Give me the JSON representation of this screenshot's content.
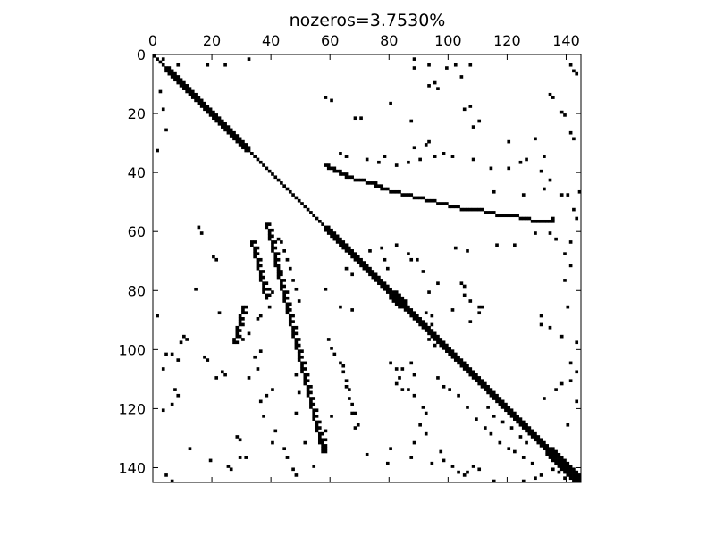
{
  "chart_data": {
    "type": "heatmap",
    "title": "nozeros=3.7530%",
    "xlabel": "",
    "ylabel": "",
    "matrix_size": 145,
    "xlim": [
      0,
      145
    ],
    "ylim": [
      145,
      0
    ],
    "x_axis_position": "top",
    "x_ticks": [
      0,
      20,
      40,
      60,
      80,
      100,
      120,
      140
    ],
    "y_ticks": [
      0,
      20,
      40,
      60,
      80,
      100,
      120,
      140
    ],
    "grid": false,
    "colors": {
      "nonzero": "#000000",
      "zero": "#ffffff",
      "frame": "#000000"
    },
    "diagonal": {
      "from": 0,
      "to": 145,
      "blocks": [
        {
          "start": 4,
          "end": 32,
          "width": 2
        },
        {
          "start": 58,
          "end": 145,
          "width": 2
        },
        {
          "start": 80,
          "end": 84,
          "width": 3
        },
        {
          "start": 133,
          "end": 145,
          "width": 3
        }
      ]
    },
    "bands": [
      {
        "name": "upper-off-band",
        "points": [
          [
            58,
            37
          ],
          [
            62,
            39
          ],
          [
            66,
            41
          ],
          [
            70,
            42
          ],
          [
            74,
            43
          ],
          [
            78,
            45
          ],
          [
            82,
            46
          ],
          [
            86,
            47
          ],
          [
            90,
            48
          ],
          [
            94,
            49
          ],
          [
            98,
            50
          ],
          [
            102,
            51
          ],
          [
            106,
            52
          ],
          [
            110,
            52
          ],
          [
            114,
            53
          ],
          [
            118,
            54
          ],
          [
            122,
            54
          ],
          [
            126,
            55
          ],
          [
            130,
            56
          ],
          [
            134,
            56
          ]
        ]
      },
      {
        "name": "lower-band-a",
        "points": [
          [
            38,
            57
          ],
          [
            39,
            61
          ],
          [
            40,
            65
          ],
          [
            41,
            69
          ],
          [
            42,
            74
          ],
          [
            43,
            78
          ],
          [
            44,
            82
          ],
          [
            45,
            86
          ],
          [
            46,
            90
          ],
          [
            47,
            94
          ],
          [
            48,
            98
          ],
          [
            49,
            102
          ],
          [
            50,
            106
          ],
          [
            51,
            110
          ],
          [
            52,
            114
          ],
          [
            53,
            118
          ],
          [
            54,
            122
          ],
          [
            55,
            126
          ],
          [
            56,
            130
          ],
          [
            57,
            134
          ]
        ]
      },
      {
        "name": "lower-band-b",
        "points": [
          [
            33,
            63
          ],
          [
            34,
            67
          ],
          [
            35,
            71
          ],
          [
            36,
            75
          ],
          [
            37,
            79
          ],
          [
            38,
            82
          ]
        ]
      },
      {
        "name": "lower-band-c",
        "points": [
          [
            30,
            85
          ],
          [
            29,
            89
          ],
          [
            28,
            93
          ],
          [
            27,
            97
          ]
        ]
      }
    ],
    "scatter_points": [
      [
        2,
        2
      ],
      [
        3,
        1
      ],
      [
        4,
        5
      ],
      [
        8,
        3
      ],
      [
        18,
        3
      ],
      [
        24,
        3
      ],
      [
        32,
        1
      ],
      [
        88,
        1
      ],
      [
        88,
        4
      ],
      [
        93,
        3
      ],
      [
        99,
        4
      ],
      [
        102,
        3
      ],
      [
        107,
        3
      ],
      [
        141,
        3
      ],
      [
        142,
        5
      ],
      [
        143,
        6
      ],
      [
        2,
        12
      ],
      [
        3,
        18
      ],
      [
        4,
        25
      ],
      [
        1,
        32
      ],
      [
        95,
        9
      ],
      [
        96,
        11
      ],
      [
        93,
        10
      ],
      [
        104,
        7
      ],
      [
        107,
        17
      ],
      [
        105,
        18
      ],
      [
        110,
        22
      ],
      [
        108,
        24
      ],
      [
        134,
        13
      ],
      [
        135,
        14
      ],
      [
        138,
        19
      ],
      [
        139,
        20
      ],
      [
        141,
        26
      ],
      [
        142,
        28
      ],
      [
        58,
        14
      ],
      [
        60,
        15
      ],
      [
        68,
        21
      ],
      [
        70,
        21
      ],
      [
        80,
        16
      ],
      [
        87,
        22
      ],
      [
        88,
        31
      ],
      [
        92,
        30
      ],
      [
        93,
        29
      ],
      [
        95,
        34
      ],
      [
        120,
        29
      ],
      [
        129,
        28
      ],
      [
        126,
        35
      ],
      [
        132,
        34
      ],
      [
        63,
        33
      ],
      [
        65,
        34
      ],
      [
        72,
        35
      ],
      [
        76,
        36
      ],
      [
        78,
        34
      ],
      [
        82,
        37
      ],
      [
        86,
        36
      ],
      [
        90,
        35
      ],
      [
        98,
        33
      ],
      [
        101,
        34
      ],
      [
        108,
        35
      ],
      [
        114,
        38
      ],
      [
        120,
        38
      ],
      [
        124,
        36
      ],
      [
        131,
        39
      ],
      [
        132,
        45
      ],
      [
        134,
        42
      ],
      [
        138,
        47
      ],
      [
        140,
        47
      ],
      [
        144,
        46
      ],
      [
        142,
        52
      ],
      [
        143,
        55
      ],
      [
        145,
        55
      ],
      [
        135,
        55
      ],
      [
        125,
        47
      ],
      [
        115,
        46
      ],
      [
        15,
        58
      ],
      [
        16,
        60
      ],
      [
        20,
        68
      ],
      [
        21,
        69
      ],
      [
        14,
        79
      ],
      [
        22,
        87
      ],
      [
        1,
        88
      ],
      [
        10,
        95
      ],
      [
        11,
        96
      ],
      [
        9,
        97
      ],
      [
        4,
        101
      ],
      [
        6,
        101
      ],
      [
        8,
        103
      ],
      [
        17,
        102
      ],
      [
        18,
        103
      ],
      [
        3,
        106
      ],
      [
        23,
        107
      ],
      [
        24,
        108
      ],
      [
        21,
        109
      ],
      [
        7,
        113
      ],
      [
        8,
        115
      ],
      [
        6,
        118
      ],
      [
        3,
        120
      ],
      [
        28,
        129
      ],
      [
        29,
        130
      ],
      [
        29,
        136
      ],
      [
        31,
        136
      ],
      [
        12,
        133
      ],
      [
        19,
        137
      ],
      [
        25,
        139
      ],
      [
        26,
        140
      ],
      [
        4,
        142
      ],
      [
        6,
        144
      ],
      [
        40,
        59
      ],
      [
        42,
        62
      ],
      [
        43,
        63
      ],
      [
        34,
        67
      ],
      [
        35,
        71
      ],
      [
        36,
        75
      ],
      [
        39,
        79
      ],
      [
        39,
        85
      ],
      [
        40,
        80
      ],
      [
        35,
        89
      ],
      [
        36,
        88
      ],
      [
        32,
        94
      ],
      [
        30,
        96
      ],
      [
        36,
        100
      ],
      [
        34,
        102
      ],
      [
        35,
        106
      ],
      [
        32,
        109
      ],
      [
        38,
        115
      ],
      [
        36,
        117
      ],
      [
        40,
        113
      ],
      [
        37,
        122
      ],
      [
        41,
        127
      ],
      [
        40,
        131
      ],
      [
        44,
        133
      ],
      [
        45,
        136
      ],
      [
        47,
        140
      ],
      [
        48,
        142
      ],
      [
        54,
        139
      ],
      [
        51,
        131
      ],
      [
        48,
        108
      ],
      [
        49,
        114
      ],
      [
        48,
        121
      ],
      [
        58,
        127
      ],
      [
        58,
        130
      ],
      [
        58,
        79
      ],
      [
        63,
        85
      ],
      [
        67,
        86
      ],
      [
        67,
        74
      ],
      [
        65,
        72
      ],
      [
        71,
        71
      ],
      [
        73,
        66
      ],
      [
        77,
        65
      ],
      [
        78,
        69
      ],
      [
        79,
        72
      ],
      [
        82,
        64
      ],
      [
        86,
        67
      ],
      [
        87,
        69
      ],
      [
        89,
        69
      ],
      [
        91,
        73
      ],
      [
        96,
        77
      ],
      [
        93,
        80
      ],
      [
        92,
        87
      ],
      [
        94,
        88
      ],
      [
        94,
        91
      ],
      [
        93,
        96
      ],
      [
        95,
        98
      ],
      [
        98,
        97
      ],
      [
        104,
        77
      ],
      [
        105,
        78
      ],
      [
        105,
        81
      ],
      [
        107,
        83
      ],
      [
        110,
        85
      ],
      [
        111,
        85
      ],
      [
        110,
        87
      ],
      [
        107,
        90
      ],
      [
        101,
        86
      ],
      [
        102,
        65
      ],
      [
        106,
        66
      ],
      [
        116,
        64
      ],
      [
        122,
        64
      ],
      [
        129,
        60
      ],
      [
        134,
        60
      ],
      [
        136,
        62
      ],
      [
        141,
        63
      ],
      [
        139,
        67
      ],
      [
        141,
        71
      ],
      [
        139,
        76
      ],
      [
        140,
        85
      ],
      [
        145,
        92
      ],
      [
        131,
        88
      ],
      [
        131,
        91
      ],
      [
        134,
        92
      ],
      [
        138,
        95
      ],
      [
        143,
        97
      ],
      [
        141,
        104
      ],
      [
        143,
        107
      ],
      [
        141,
        110
      ],
      [
        138,
        111
      ],
      [
        136,
        113
      ],
      [
        132,
        116
      ],
      [
        143,
        117
      ],
      [
        145,
        123
      ],
      [
        140,
        125
      ],
      [
        57,
        131
      ],
      [
        58,
        133
      ],
      [
        60,
        122
      ],
      [
        64,
        105
      ],
      [
        65,
        112
      ],
      [
        66,
        116
      ],
      [
        67,
        121
      ],
      [
        68,
        126
      ],
      [
        72,
        135
      ],
      [
        79,
        138
      ],
      [
        80,
        104
      ],
      [
        82,
        106
      ],
      [
        84,
        106
      ],
      [
        83,
        109
      ],
      [
        87,
        104
      ],
      [
        88,
        108
      ],
      [
        82,
        111
      ],
      [
        84,
        113
      ],
      [
        86,
        113
      ],
      [
        88,
        115
      ],
      [
        91,
        119
      ],
      [
        92,
        121
      ],
      [
        90,
        125
      ],
      [
        92,
        128
      ],
      [
        88,
        131
      ],
      [
        87,
        136
      ],
      [
        80,
        133
      ],
      [
        94,
        138
      ],
      [
        97,
        134
      ],
      [
        98,
        137
      ],
      [
        101,
        139
      ],
      [
        103,
        141
      ],
      [
        105,
        142
      ],
      [
        106,
        141
      ],
      [
        108,
        139
      ],
      [
        110,
        140
      ],
      [
        115,
        144
      ],
      [
        118,
        145
      ],
      [
        125,
        144
      ],
      [
        129,
        143
      ],
      [
        131,
        142
      ],
      [
        135,
        140
      ],
      [
        137,
        141
      ],
      [
        139,
        143
      ],
      [
        143,
        144
      ],
      [
        96,
        109
      ],
      [
        98,
        112
      ],
      [
        100,
        113
      ],
      [
        103,
        115
      ],
      [
        106,
        119
      ],
      [
        109,
        123
      ],
      [
        112,
        126
      ],
      [
        114,
        128
      ],
      [
        117,
        131
      ],
      [
        120,
        133
      ],
      [
        122,
        134
      ],
      [
        125,
        136
      ],
      [
        128,
        138
      ],
      [
        113,
        119
      ],
      [
        115,
        122
      ],
      [
        118,
        124
      ],
      [
        121,
        126
      ],
      [
        124,
        129
      ],
      [
        126,
        131
      ],
      [
        59,
        96
      ],
      [
        60,
        99
      ],
      [
        61,
        101
      ],
      [
        63,
        104
      ],
      [
        64,
        107
      ],
      [
        65,
        110
      ],
      [
        66,
        113
      ],
      [
        67,
        118
      ],
      [
        68,
        121
      ],
      [
        69,
        125
      ],
      [
        44,
        66
      ],
      [
        45,
        69
      ],
      [
        46,
        72
      ],
      [
        47,
        76
      ],
      [
        48,
        79
      ],
      [
        49,
        83
      ]
    ]
  }
}
